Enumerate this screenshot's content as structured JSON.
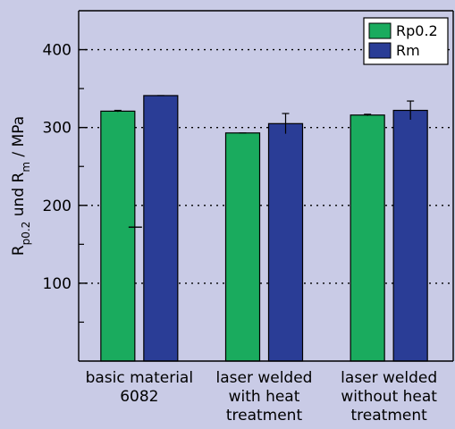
{
  "chart_data": {
    "type": "bar",
    "categories": [
      [
        "basic material",
        "6082"
      ],
      [
        "laser welded",
        "with heat",
        "treatment"
      ],
      [
        "laser welded",
        "without heat",
        "treatment"
      ]
    ],
    "series": [
      {
        "name": "Rp0.2",
        "values": [
          321,
          293,
          316
        ],
        "errors": [
          1,
          0,
          1
        ],
        "color": "#1aab5e"
      },
      {
        "name": "Rm",
        "values": [
          341,
          305,
          322
        ],
        "errors": [
          0,
          13,
          12
        ],
        "color": "#2a3d96"
      }
    ],
    "ylabel": {
      "parts": [
        {
          "text": "R",
          "sub": false
        },
        {
          "text": "p0.2",
          "sub": true
        },
        {
          "text": " und R",
          "sub": false
        },
        {
          "text": "m",
          "sub": true
        },
        {
          "text": " / MPa",
          "sub": false
        }
      ]
    },
    "ylim": [
      0,
      450
    ],
    "yticks": [
      100,
      200,
      300,
      400
    ],
    "yminor_ticks": [
      50,
      150,
      250,
      350
    ],
    "grid": true,
    "legend_position": "top-right",
    "extra_mark": {
      "category_index": 0,
      "y": 172
    }
  },
  "colors": {
    "background": "#c9cbe6",
    "plot_background": "#c9cbe6",
    "axis": "#000000"
  }
}
